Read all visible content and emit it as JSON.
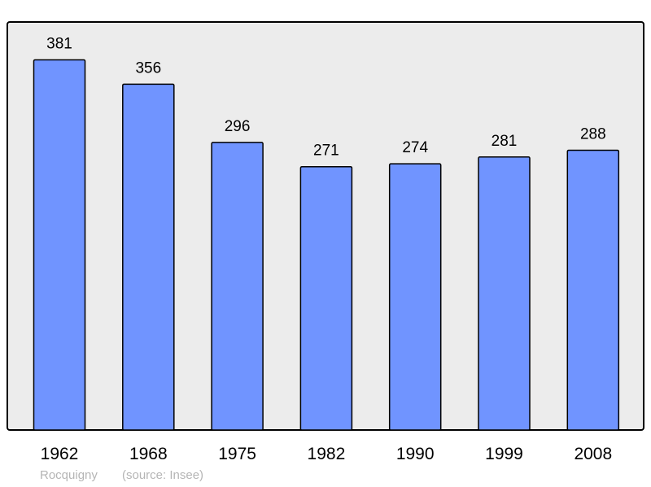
{
  "chart_data": {
    "type": "bar",
    "categories": [
      "1962",
      "1968",
      "1975",
      "1982",
      "1990",
      "1999",
      "2008"
    ],
    "values": [
      381,
      356,
      296,
      271,
      274,
      281,
      288
    ],
    "title": "",
    "xlabel": "",
    "ylabel": "",
    "ylim": [
      0,
      420
    ],
    "grid": false,
    "data_labels": true,
    "colors": {
      "bar": "#7094ff",
      "plot_background": "#ececec",
      "border": "#000000",
      "footer_text": "#b5b5b5"
    }
  },
  "footer": {
    "place": "Rocquigny",
    "source": "(source: Insee)"
  }
}
